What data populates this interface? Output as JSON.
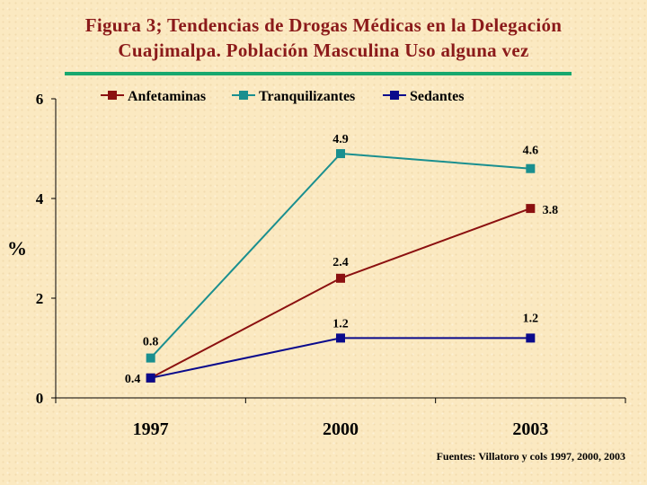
{
  "title_line1": "Figura 3; Tendencias de Drogas Médicas en  la Delegación",
  "title_line2": "Cuajimalpa. Población Masculina Uso alguna vez",
  "source": "Fuentes: Villatoro y cols 1997, 2000, 2003",
  "colors": {
    "title": "#8b1a1a",
    "rule": "#18a86e",
    "background": "#fbe9c1"
  },
  "chart_data": {
    "type": "line",
    "title": "Figura 3; Tendencias de Drogas Médicas en  la Delegación Cuajimalpa. Población Masculina Uso alguna vez",
    "xlabel": "",
    "ylabel": "%",
    "categories": [
      "1997",
      "2000",
      "2003"
    ],
    "ylim": [
      0,
      6
    ],
    "yticks": [
      0,
      2,
      4,
      6
    ],
    "ytick_labels": [
      "0",
      "2",
      "4",
      "6"
    ],
    "grid": false,
    "legend_position": "top",
    "series": [
      {
        "name": "Anfetaminas",
        "color": "#8b1010",
        "values": [
          0.4,
          2.4,
          3.8
        ],
        "labels": [
          "",
          "2.4",
          "3.8"
        ]
      },
      {
        "name": "Tranquilizantes",
        "color": "#1a8f8f",
        "values": [
          0.8,
          4.9,
          4.6
        ],
        "labels": [
          "0.8",
          "4.9",
          "4.6"
        ]
      },
      {
        "name": "Sedantes",
        "color": "#0a0a8c",
        "values": [
          0.4,
          1.2,
          1.2
        ],
        "labels": [
          "0.4",
          "1.2",
          "1.2"
        ]
      }
    ]
  }
}
